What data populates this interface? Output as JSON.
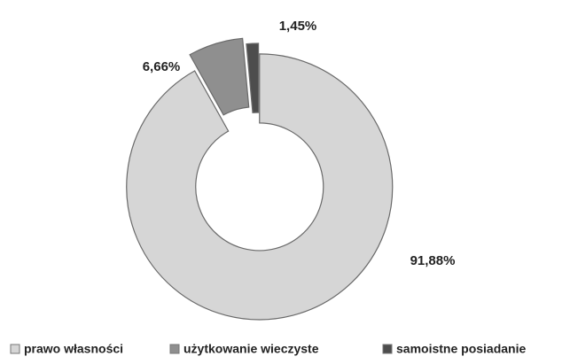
{
  "chart_data": {
    "type": "pie",
    "donut": true,
    "categories": [
      "prawo własności",
      "użytkowanie wieczyste",
      "samoistne posiadanie"
    ],
    "values": [
      91.88,
      6.66,
      1.45
    ],
    "value_labels": [
      "91,88%",
      "6,66%",
      "1,45%"
    ],
    "colors": [
      "#d6d6d6",
      "#8f8f8f",
      "#4d4d4d"
    ]
  }
}
